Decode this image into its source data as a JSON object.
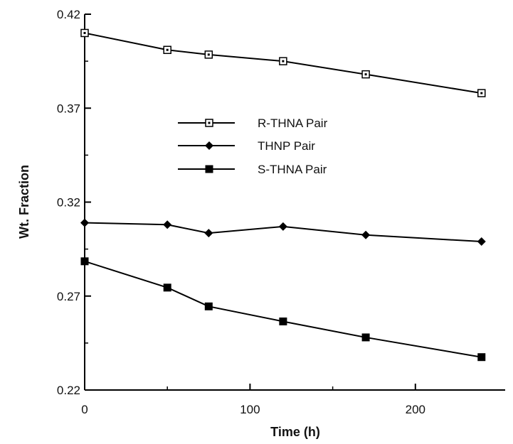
{
  "chart_data": {
    "type": "line",
    "xlabel": "Time (h)",
    "ylabel": "Wt. Fraction",
    "xlim": [
      0,
      250
    ],
    "ylim": [
      0.22,
      0.42
    ],
    "xticks": [
      0,
      100,
      200
    ],
    "yticks": [
      0.22,
      0.27,
      0.32,
      0.37,
      0.42
    ],
    "xtick_labels": [
      "0",
      "100",
      "200"
    ],
    "ytick_labels": [
      "0.22",
      "0.27",
      "0.32",
      "0.37",
      "0.42"
    ],
    "grid": false,
    "legend_position": "center-left",
    "series": [
      {
        "name": "R-THNA Pair",
        "marker": "open-square",
        "x": [
          0,
          50,
          75,
          120,
          170,
          240
        ],
        "y": [
          0.41,
          0.401,
          0.3985,
          0.395,
          0.388,
          0.378
        ]
      },
      {
        "name": "THNP Pair",
        "marker": "filled-diamond",
        "x": [
          0,
          50,
          75,
          120,
          170,
          240
        ],
        "y": [
          0.309,
          0.308,
          0.3035,
          0.307,
          0.3025,
          0.299
        ]
      },
      {
        "name": "S-THNA Pair",
        "marker": "filled-square",
        "x": [
          0,
          50,
          75,
          120,
          170,
          240
        ],
        "y": [
          0.2885,
          0.2745,
          0.2645,
          0.2565,
          0.248,
          0.2375
        ]
      }
    ]
  }
}
